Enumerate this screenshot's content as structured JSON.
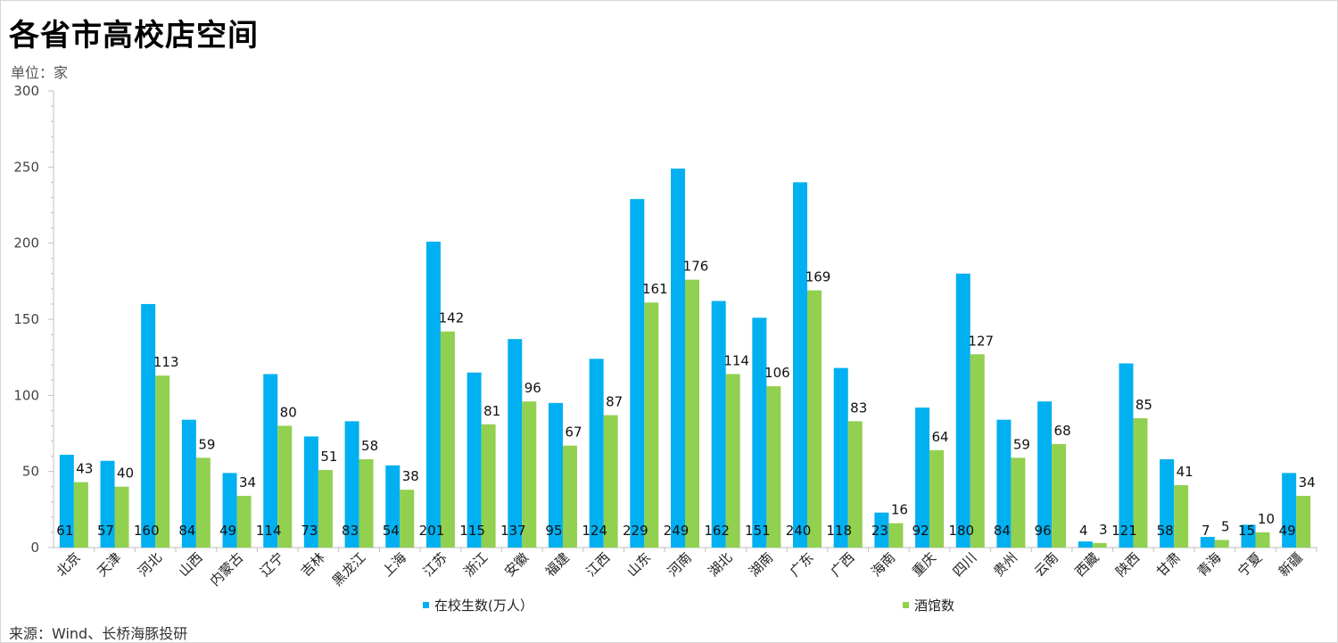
{
  "title": "各省市高校店空间",
  "unit_label": "单位：家",
  "source": "来源：Wind、长桥海豚投研",
  "colors": {
    "students": "#00b0f0",
    "bars": "#92d050"
  },
  "chart_data": {
    "type": "bar",
    "ylim": [
      0,
      300
    ],
    "yticks": [
      0,
      50,
      100,
      150,
      200,
      250,
      300
    ],
    "categories": [
      "北京",
      "天津",
      "河北",
      "山西",
      "内蒙古",
      "辽宁",
      "吉林",
      "黑龙江",
      "上海",
      "江苏",
      "浙江",
      "安徽",
      "福建",
      "江西",
      "山东",
      "河南",
      "湖北",
      "湖南",
      "广东",
      "广西",
      "海南",
      "重庆",
      "四川",
      "贵州",
      "云南",
      "西藏",
      "陕西",
      "甘肃",
      "青海",
      "宁夏",
      "新疆"
    ],
    "series": [
      {
        "name": "在校生数(万人）",
        "values": [
          61,
          57,
          160,
          84,
          49,
          114,
          73,
          83,
          54,
          201,
          115,
          137,
          95,
          124,
          229,
          249,
          162,
          151,
          240,
          118,
          23,
          92,
          180,
          84,
          96,
          4,
          121,
          58,
          7,
          15,
          49
        ]
      },
      {
        "name": "酒馆数",
        "values": [
          43,
          40,
          113,
          59,
          34,
          80,
          51,
          58,
          38,
          142,
          81,
          96,
          67,
          87,
          161,
          176,
          114,
          106,
          169,
          83,
          16,
          64,
          127,
          59,
          68,
          3,
          85,
          41,
          5,
          10,
          34
        ]
      }
    ],
    "legend_position": "bottom"
  }
}
